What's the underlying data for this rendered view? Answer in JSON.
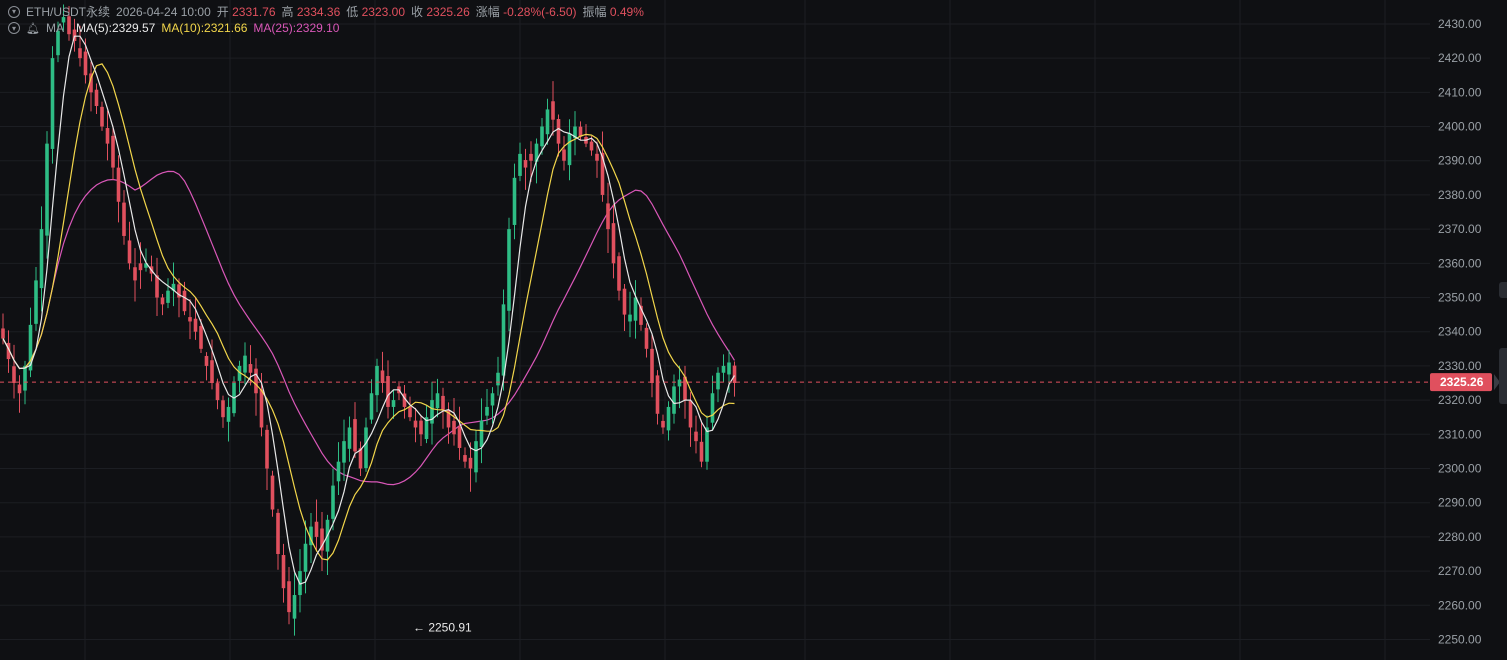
{
  "header": {
    "symbol": "ETH/USDT永续",
    "time": "2026-04-24 10:00",
    "open_label": "开",
    "open": "2331.76",
    "high_label": "高",
    "high": "2334.36",
    "low_label": "低",
    "low": "2323.00",
    "close_label": "收",
    "close": "2325.26",
    "change_label": "涨幅",
    "change": "-0.28%(-6.50)",
    "amp_label": "振幅",
    "amp": "0.49%"
  },
  "indicators": {
    "name": "MA",
    "ma5": "MA(5):2329.57",
    "ma10": "MA(10):2321.66",
    "ma25": "MA(25):2329.10"
  },
  "colors": {
    "up": "#2ebd85",
    "down": "#e0505e",
    "ma5": "#e8e8e8",
    "ma10": "#f2d64b",
    "ma25": "#d957b8",
    "grid": "#1c1e23",
    "axis_text": "#9aa0a6",
    "price_tag": "#e0505e"
  },
  "chart_data": {
    "type": "candlestick",
    "y_ticks": [
      2250,
      2260,
      2270,
      2280,
      2290,
      2300,
      2310,
      2320,
      2330,
      2340,
      2350,
      2360,
      2370,
      2380,
      2390,
      2400,
      2410,
      2420,
      2430
    ],
    "y_tick_labels": [
      "2250.00",
      "2260.00",
      "2270.00",
      "2280.00",
      "2290.00",
      "2300.00",
      "2310.00",
      "2320.00",
      "2330.00",
      "2340.00",
      "2350.00",
      "2360.00",
      "2370.00",
      "2380.00",
      "2390.00",
      "2400.00",
      "2410.00",
      "2420.00",
      "2430.00"
    ],
    "ylim": [
      2244,
      2437
    ],
    "grid": true,
    "current_price": 2325.26,
    "current_price_label": "2325.26",
    "low_marker_value": 2250.91,
    "low_marker_label": "← 2250.91",
    "closes": [
      2338,
      2332,
      2325,
      2322,
      2330,
      2342,
      2355,
      2370,
      2395,
      2420,
      2428,
      2432,
      2427,
      2425,
      2420,
      2415,
      2410,
      2406,
      2400,
      2395,
      2388,
      2378,
      2368,
      2360,
      2355,
      2358,
      2360,
      2357,
      2350,
      2348,
      2352,
      2354,
      2350,
      2346,
      2343,
      2340,
      2335,
      2330,
      2325,
      2320,
      2315,
      2318,
      2325,
      2330,
      2333,
      2328,
      2322,
      2312,
      2300,
      2288,
      2275,
      2265,
      2258,
      2263,
      2270,
      2278,
      2283,
      2280,
      2276,
      2285,
      2295,
      2302,
      2308,
      2312,
      2305,
      2300,
      2312,
      2322,
      2330,
      2325,
      2318,
      2320,
      2322,
      2318,
      2315,
      2312,
      2310,
      2315,
      2320,
      2322,
      2317,
      2312,
      2310,
      2306,
      2302,
      2300,
      2308,
      2314,
      2318,
      2322,
      2328,
      2348,
      2370,
      2385,
      2392,
      2388,
      2390,
      2395,
      2400,
      2405,
      2402,
      2395,
      2390,
      2398,
      2400,
      2397,
      2395,
      2393,
      2390,
      2380,
      2370,
      2360,
      2352,
      2345,
      2345,
      2350,
      2342,
      2335,
      2325,
      2316,
      2312,
      2318,
      2324,
      2326,
      2320,
      2312,
      2308,
      2302,
      2312,
      2322,
      2328,
      2330,
      2331,
      2325
    ],
    "ma5_end": 2329.57,
    "ma10_end": 2321.66,
    "ma25_end": 2329.1
  }
}
